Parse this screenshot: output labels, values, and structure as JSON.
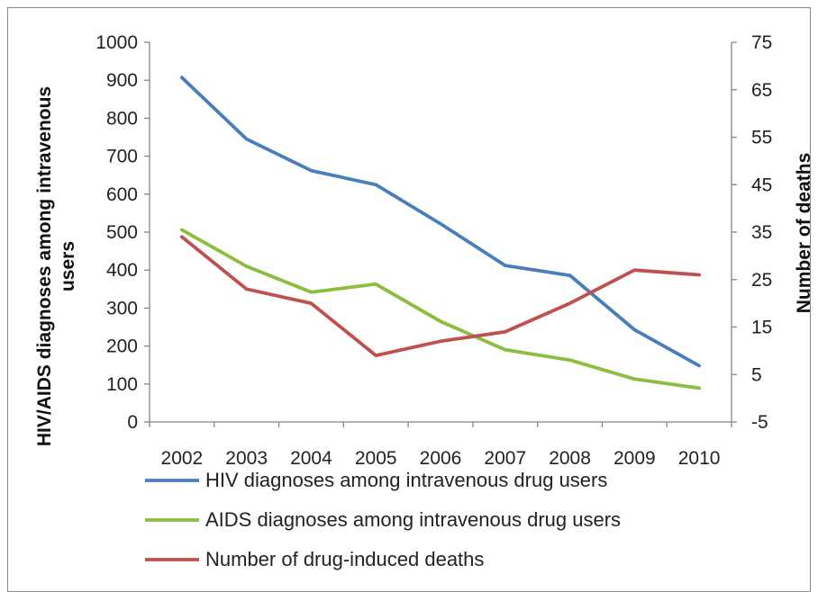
{
  "chart_data": {
    "type": "line",
    "title": "",
    "categories": [
      "2002",
      "2003",
      "2004",
      "2005",
      "2006",
      "2007",
      "2008",
      "2009",
      "2010"
    ],
    "y_left": {
      "label_line1": "HIV/AIDS diagnoses among intravenous",
      "label_line2": "users",
      "range": [
        0,
        1000
      ],
      "ticks": [
        "0",
        "100",
        "200",
        "300",
        "400",
        "500",
        "600",
        "700",
        "800",
        "900",
        "1000"
      ]
    },
    "y_right": {
      "label": "Number of deaths",
      "range": [
        -5,
        75
      ],
      "ticks": [
        "-5",
        "5",
        "15",
        "25",
        "35",
        "45",
        "55",
        "65",
        "75"
      ]
    },
    "series": [
      {
        "name": "HIV diagnoses among intravenous drug users",
        "axis": "left",
        "color": "#4a7ebb",
        "values": [
          907,
          745,
          662,
          625,
          522,
          412,
          386,
          243,
          148
        ]
      },
      {
        "name": "AIDS diagnoses among intravenous drug users",
        "axis": "left",
        "color": "#8cbd3d",
        "values": [
          506,
          410,
          342,
          363,
          265,
          190,
          163,
          113,
          89
        ]
      },
      {
        "name": "Number of drug-induced deaths",
        "axis": "right",
        "color": "#c0504d",
        "values": [
          34,
          23,
          20,
          9,
          12,
          14,
          20,
          27,
          26
        ]
      }
    ],
    "grid": false,
    "legend_position": "bottom"
  }
}
